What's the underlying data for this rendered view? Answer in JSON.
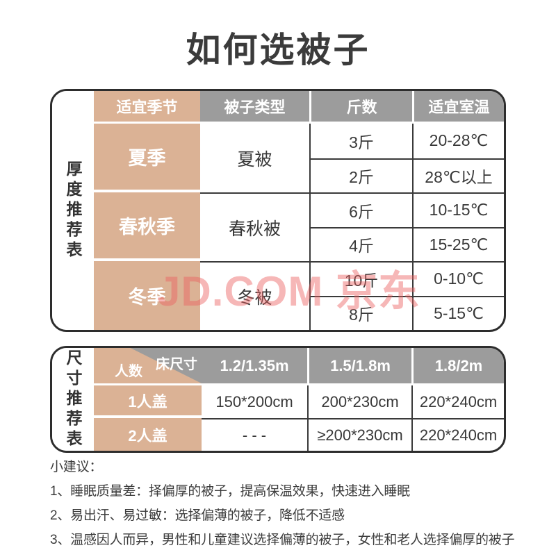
{
  "page": {
    "title": "如何选被子"
  },
  "watermark": {
    "text": "JD.COM 京东"
  },
  "colors": {
    "tan": "#DBB295",
    "header_gray": "#9C9C9C",
    "frame_border": "#2D2D2D",
    "text_dark": "#3A3A3A",
    "watermark_pink": "#EC6060"
  },
  "thickness_table": {
    "side_label": "厚度推荐表",
    "headers": [
      "适宜季节",
      "被子类型",
      "斤数",
      "适宜室温"
    ],
    "sections": [
      {
        "season": "夏季",
        "quilt": "夏被",
        "rows": [
          {
            "weight": "3斤",
            "temp": "20-28℃"
          },
          {
            "weight": "2斤",
            "temp": "28℃以上"
          }
        ]
      },
      {
        "season": "春秋季",
        "quilt": "春秋被",
        "rows": [
          {
            "weight": "6斤",
            "temp": "10-15℃"
          },
          {
            "weight": "4斤",
            "temp": "15-25℃"
          }
        ]
      },
      {
        "season": "冬季",
        "quilt": "冬被",
        "rows": [
          {
            "weight": "10斤",
            "temp": "0-10℃"
          },
          {
            "weight": "8斤",
            "temp": "5-15℃"
          }
        ]
      }
    ]
  },
  "size_table": {
    "side_label": "尺寸推荐表",
    "corner": {
      "top": "床尺寸",
      "bottom": "人数"
    },
    "bed_sizes": [
      "1.2/1.35m",
      "1.5/1.8m",
      "1.8/2m"
    ],
    "rows": [
      {
        "label": "1人盖",
        "values": [
          "150*200cm",
          "200*230cm",
          "220*240cm"
        ]
      },
      {
        "label": "2人盖",
        "values": [
          "- - -",
          "≥200*230cm",
          "220*240cm"
        ]
      }
    ]
  },
  "tips": {
    "title": "小建议：",
    "items": [
      "1、睡眠质量差：择偏厚的被子，提高保温效果，快速进入睡眠",
      "2、易出汗、易过敏：选择偏薄的被子，降低不适感",
      "3、温感因人而异，男性和儿童建议选择偏薄的被子，女性和老人选择偏厚的被子"
    ]
  }
}
